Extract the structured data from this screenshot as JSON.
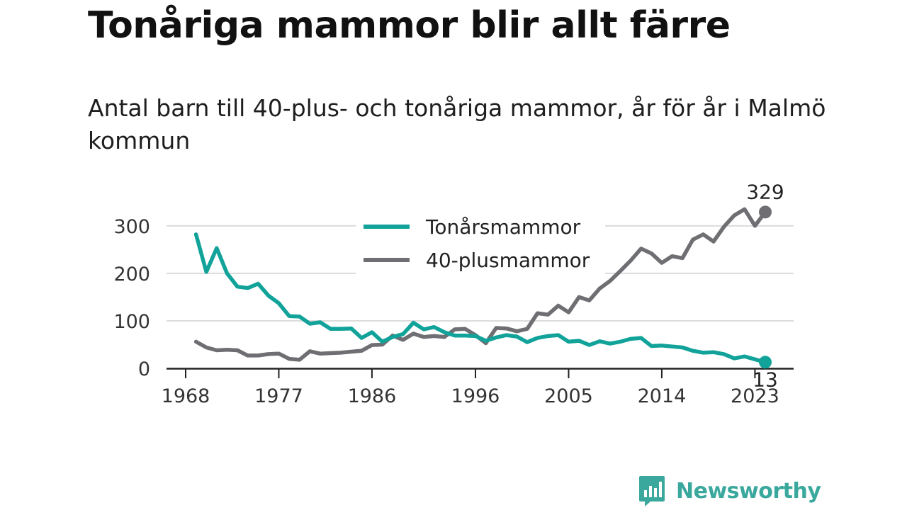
{
  "title": "Tonåriga mammor blir allt färre",
  "subtitle": "Antal barn till 40-plus- och tonåriga mammor, år för år i Malmö kommun",
  "brand": "Newsworthy",
  "colors": {
    "teen": "#11a399",
    "plus40": "#6e6e73",
    "brand": "#3aa89d",
    "grid": "#dcdcdc",
    "axis": "#222222"
  },
  "chart_data": {
    "type": "line",
    "title": "Tonåriga mammor blir allt färre",
    "xlabel": "",
    "ylabel": "",
    "xlim": [
      1968,
      2024
    ],
    "ylim": [
      0,
      340
    ],
    "x_ticks": [
      1968,
      1977,
      1986,
      1996,
      2005,
      2014,
      2023
    ],
    "y_ticks": [
      0,
      100,
      200,
      300
    ],
    "grid": "horizontal",
    "legend_position": "top-center",
    "x": [
      1969,
      1970,
      1971,
      1972,
      1973,
      1974,
      1975,
      1976,
      1977,
      1978,
      1979,
      1980,
      1981,
      1982,
      1983,
      1984,
      1985,
      1986,
      1987,
      1988,
      1989,
      1990,
      1991,
      1992,
      1993,
      1994,
      1995,
      1996,
      1997,
      1998,
      1999,
      2000,
      2001,
      2002,
      2003,
      2004,
      2005,
      2006,
      2007,
      2008,
      2009,
      2010,
      2011,
      2012,
      2013,
      2014,
      2015,
      2016,
      2017,
      2018,
      2019,
      2020,
      2021,
      2022,
      2023,
      2024
    ],
    "series": [
      {
        "name": "Tonårsmammor",
        "color": "#11a399",
        "end_label": "13",
        "values": [
          282,
          203,
          253,
          200,
          172,
          169,
          178,
          153,
          137,
          110,
          109,
          94,
          97,
          83,
          83,
          84,
          64,
          76,
          56,
          66,
          72,
          96,
          82,
          87,
          76,
          69,
          69,
          68,
          58,
          65,
          70,
          67,
          55,
          64,
          68,
          70,
          56,
          58,
          49,
          57,
          52,
          56,
          62,
          64,
          47,
          48,
          46,
          44,
          37,
          33,
          34,
          30,
          21,
          25,
          19,
          13
        ]
      },
      {
        "name": "40-plusmammor",
        "color": "#6e6e73",
        "end_label": "329",
        "values": [
          56,
          44,
          38,
          39,
          38,
          27,
          27,
          30,
          31,
          20,
          18,
          36,
          31,
          32,
          33,
          35,
          37,
          49,
          50,
          69,
          60,
          73,
          66,
          68,
          66,
          82,
          83,
          70,
          53,
          85,
          84,
          78,
          83,
          116,
          113,
          132,
          118,
          150,
          143,
          168,
          184,
          205,
          227,
          252,
          242,
          222,
          236,
          232,
          271,
          282,
          267,
          298,
          322,
          335,
          300,
          329
        ]
      }
    ]
  }
}
